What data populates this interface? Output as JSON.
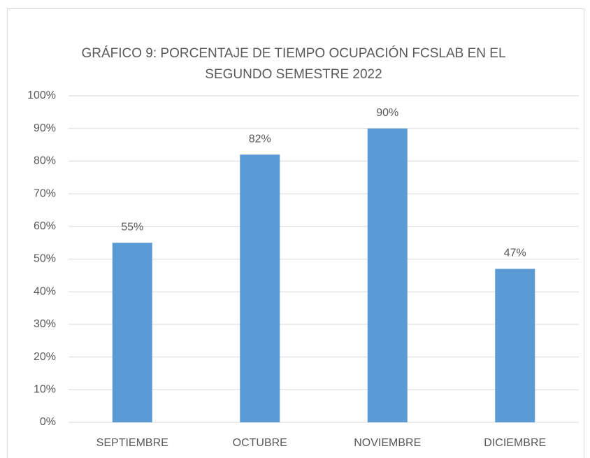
{
  "chart_data": {
    "type": "bar",
    "title": "GRÁFICO 9: PORCENTAJE DE TIEMPO OCUPACIÓN FCSLAB EN EL SEGUNDO SEMESTRE 2022",
    "categories": [
      "SEPTIEMBRE",
      "OCTUBRE",
      "NOVIEMBRE",
      "DICIEMBRE"
    ],
    "values": [
      55,
      82,
      90,
      47
    ],
    "value_labels": [
      "55%",
      "82%",
      "90%",
      "47%"
    ],
    "color": "#5b9bd5",
    "ylim": [
      0,
      100
    ],
    "yticks": [
      {
        "value": 0,
        "label": "0%"
      },
      {
        "value": 10,
        "label": "10%"
      },
      {
        "value": 20,
        "label": "20%"
      },
      {
        "value": 30,
        "label": "30%"
      },
      {
        "value": 40,
        "label": "40%"
      },
      {
        "value": 50,
        "label": "50%"
      },
      {
        "value": 60,
        "label": "60%"
      },
      {
        "value": 70,
        "label": "70%"
      },
      {
        "value": 80,
        "label": "80%"
      },
      {
        "value": 90,
        "label": "90%"
      },
      {
        "value": 100,
        "label": "100%"
      }
    ],
    "grid": true
  }
}
